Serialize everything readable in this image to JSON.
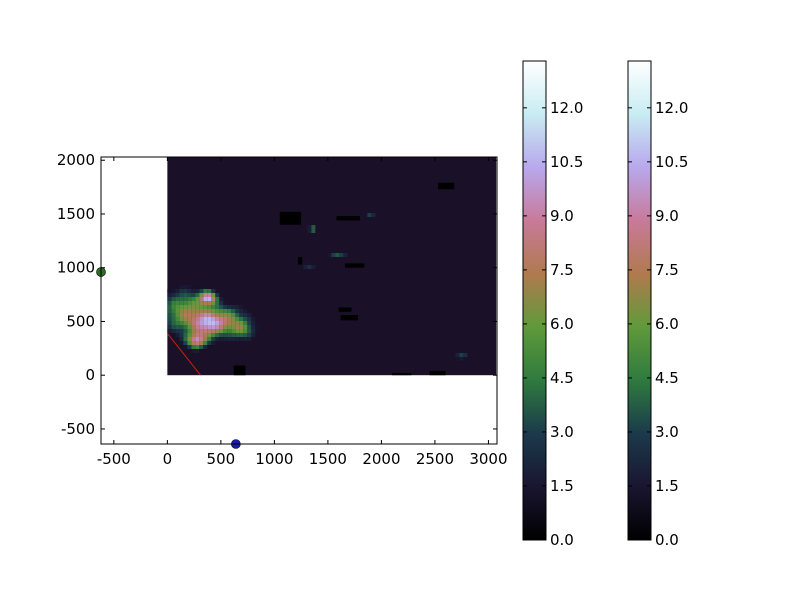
{
  "chart_data": {
    "type": "heatmap",
    "title": "",
    "xlabel": "",
    "ylabel": "",
    "xlim": [
      -620,
      3080
    ],
    "ylim": [
      -640,
      2030
    ],
    "x_ticks": [
      -500,
      0,
      500,
      1000,
      1500,
      2000,
      2500,
      3000
    ],
    "y_ticks": [
      -500,
      0,
      500,
      1000,
      1500,
      2000
    ],
    "image_extent": {
      "x": [
        0,
        3072
      ],
      "y": [
        0,
        2030
      ]
    },
    "colormap": "cubehelix",
    "colormap_stops": [
      "#000000",
      "#1a1530",
      "#1b3a4b",
      "#2f7a3f",
      "#5f9a3a",
      "#b07a4f",
      "#c87a9a",
      "#b8a8ec",
      "#c8ecf2",
      "#ffffff"
    ],
    "background_value_color": "#1a1028",
    "data_range": [
      0,
      13.3
    ],
    "hotspots": [
      {
        "x": 170,
        "y": 590,
        "value": 6.5,
        "sx": 210,
        "sy": 190
      },
      {
        "x": 380,
        "y": 470,
        "value": 7.5,
        "sx": 150,
        "sy": 130
      },
      {
        "x": 560,
        "y": 520,
        "value": 5.5,
        "sx": 180,
        "sy": 120
      },
      {
        "x": 380,
        "y": 720,
        "value": 9.5,
        "sx": 80,
        "sy": 60
      },
      {
        "x": 270,
        "y": 320,
        "value": 8.0,
        "sx": 90,
        "sy": 70
      },
      {
        "x": 700,
        "y": 420,
        "value": 4.5,
        "sx": 120,
        "sy": 90
      },
      {
        "x": 1360,
        "y": 1360,
        "value": 5.0,
        "sx": 35,
        "sy": 35
      },
      {
        "x": 1900,
        "y": 1480,
        "value": 4.0,
        "sx": 45,
        "sy": 25
      },
      {
        "x": 1320,
        "y": 1020,
        "value": 4.0,
        "sx": 60,
        "sy": 25
      },
      {
        "x": 1600,
        "y": 1120,
        "value": 4.0,
        "sx": 80,
        "sy": 30
      },
      {
        "x": 2750,
        "y": 180,
        "value": 3.0,
        "sx": 70,
        "sy": 40
      }
    ],
    "masked_regions": [
      {
        "x0": 1050,
        "x1": 1250,
        "y0": 1400,
        "y1": 1520
      },
      {
        "x0": 1580,
        "x1": 1800,
        "y0": 1440,
        "y1": 1480
      },
      {
        "x0": 2530,
        "x1": 2680,
        "y0": 1730,
        "y1": 1790
      },
      {
        "x0": 1220,
        "x1": 1260,
        "y0": 1030,
        "y1": 1100
      },
      {
        "x0": 1660,
        "x1": 1840,
        "y0": 1000,
        "y1": 1040
      },
      {
        "x0": 1620,
        "x1": 1780,
        "y0": 510,
        "y1": 560
      },
      {
        "x0": 1600,
        "x1": 1720,
        "y0": 590,
        "y1": 630
      },
      {
        "x0": 620,
        "x1": 730,
        "y0": 0,
        "y1": 90
      },
      {
        "x0": 2450,
        "x1": 2600,
        "y0": 0,
        "y1": 40
      },
      {
        "x0": 2100,
        "x1": 2280,
        "y0": 0,
        "y1": 20
      }
    ],
    "line": {
      "x": [
        0,
        310
      ],
      "y": [
        390,
        0
      ],
      "color": "#cc2200"
    },
    "markers": [
      {
        "x": -620,
        "y": 960,
        "color": "#2a6e1f"
      },
      {
        "x": 640,
        "y": -640,
        "color": "#1a1ab0"
      }
    ],
    "colorbars": [
      {
        "ticks": [
          0.0,
          1.5,
          3.0,
          4.5,
          6.0,
          7.5,
          9.0,
          10.5,
          12.0
        ],
        "labels": [
          "0.0",
          "1.5",
          "3.0",
          "4.5",
          "6.0",
          "7.5",
          "9.0",
          "10.5",
          "12.0"
        ],
        "range": [
          0,
          13.3
        ]
      },
      {
        "ticks": [
          0.0,
          1.5,
          3.0,
          4.5,
          6.0,
          7.5,
          9.0,
          10.5,
          12.0
        ],
        "labels": [
          "0.0",
          "1.5",
          "3.0",
          "4.5",
          "6.0",
          "7.5",
          "9.0",
          "10.5",
          "12.0"
        ],
        "range": [
          0,
          13.3
        ]
      }
    ]
  }
}
